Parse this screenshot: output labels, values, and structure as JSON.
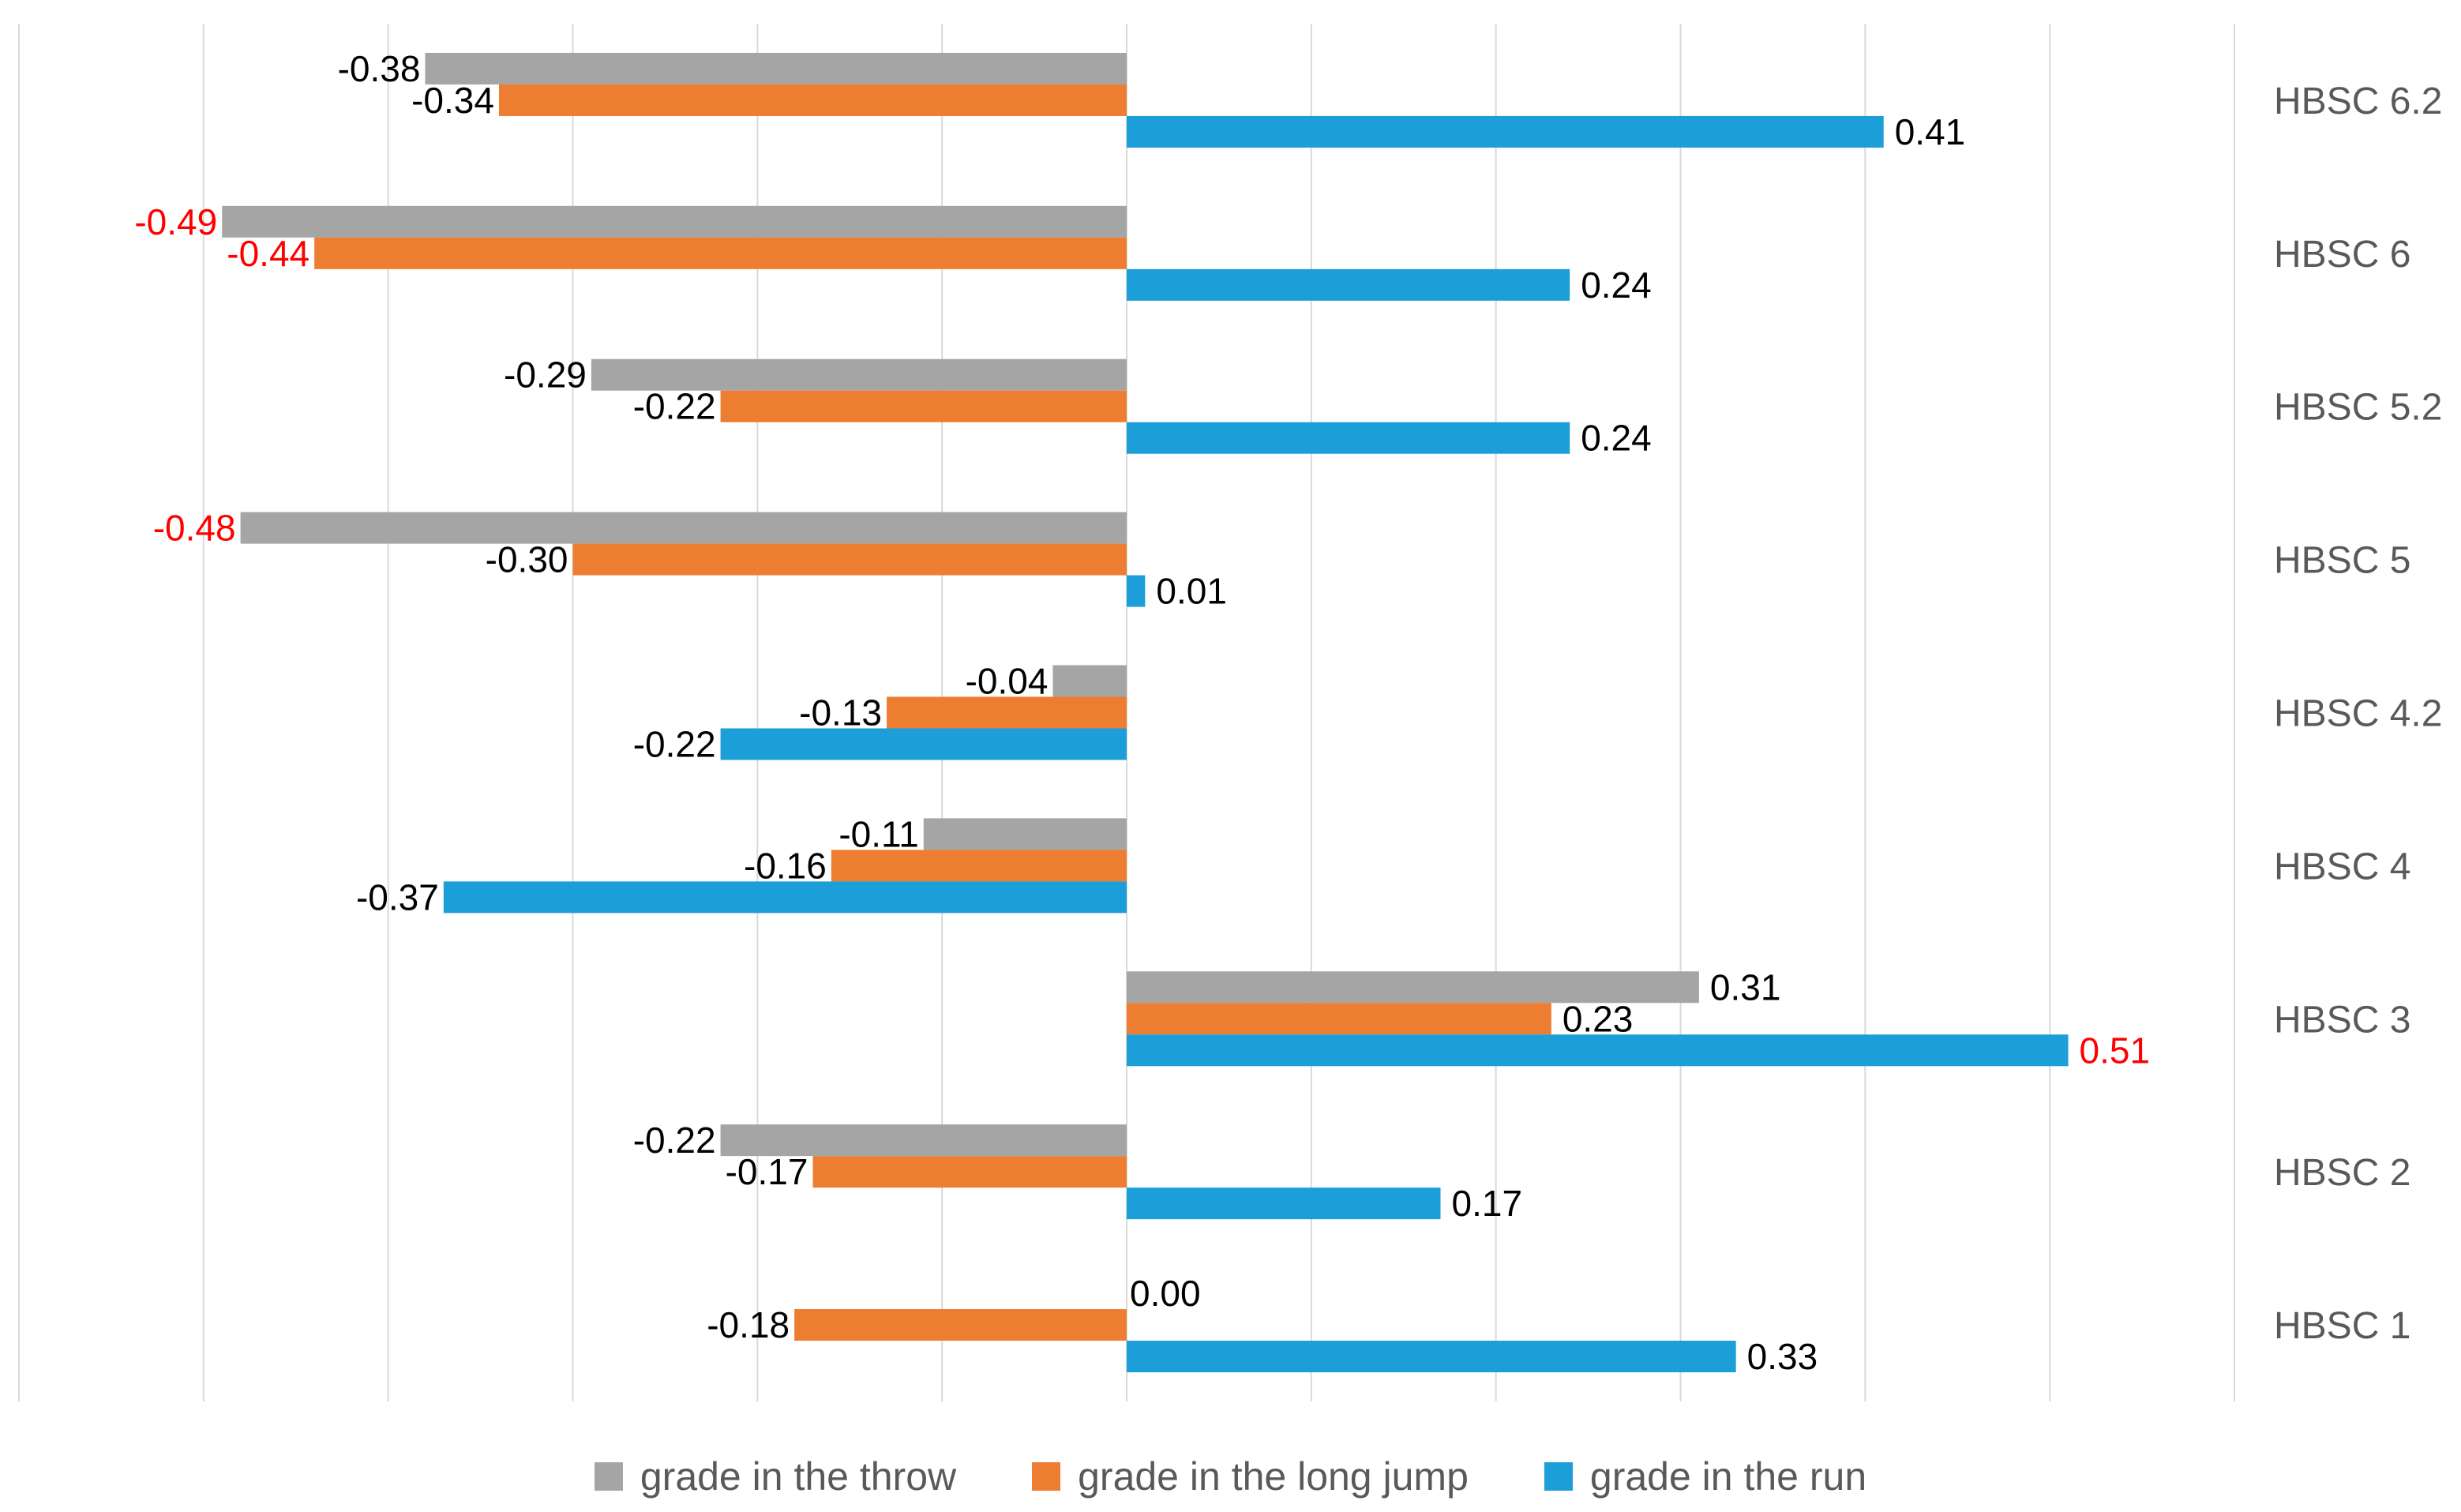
{
  "chart_data": {
    "type": "bar",
    "orientation": "horizontal",
    "categories": [
      "HBSC 1",
      "HBSC 2",
      "HBSC 3",
      "HBSC 4",
      "HBSC 4.2",
      "HBSC 5",
      "HBSC 5.2",
      "HBSC 6",
      "HBSC 6.2"
    ],
    "series": [
      {
        "name": "grade in the throw",
        "color": "#a5a5a5",
        "values": [
          0.0,
          -0.22,
          0.31,
          -0.11,
          -0.04,
          -0.48,
          -0.29,
          -0.49,
          -0.38
        ],
        "labels": [
          "0.00",
          "-0.22",
          "0.31",
          "-0.11",
          "-0.04",
          "-0.48",
          "-0.29",
          "-0.49",
          "-0.38"
        ],
        "highlight": [
          false,
          false,
          false,
          false,
          false,
          true,
          false,
          true,
          false
        ]
      },
      {
        "name": "grade in the long jump",
        "color": "#ed7d31",
        "values": [
          -0.18,
          -0.17,
          0.23,
          -0.16,
          -0.13,
          -0.3,
          -0.22,
          -0.44,
          -0.34
        ],
        "labels": [
          "-0.18",
          "-0.17",
          "0.23",
          "-0.16",
          "-0.13",
          "-0.30",
          "-0.22",
          "-0.44",
          "-0.34"
        ],
        "highlight": [
          false,
          false,
          false,
          false,
          false,
          false,
          false,
          true,
          false
        ]
      },
      {
        "name": "grade in the run",
        "color": "#1c9ed8",
        "values": [
          0.33,
          0.17,
          0.51,
          -0.37,
          -0.22,
          0.01,
          0.24,
          0.24,
          0.41
        ],
        "labels": [
          "0.33",
          "0.17",
          "0.51",
          "-0.37",
          "-0.22",
          "0.01",
          "0.24",
          "0.24",
          "0.41"
        ],
        "highlight": [
          false,
          false,
          true,
          false,
          false,
          false,
          false,
          false,
          false
        ]
      }
    ],
    "xlim": [
      -0.6,
      0.6
    ],
    "grid": true,
    "legend": "bottom",
    "highlight_color": "#ff0000",
    "label_color": "#000000",
    "category_label_color": "#595959",
    "grid_color": "#d9d9d9"
  }
}
